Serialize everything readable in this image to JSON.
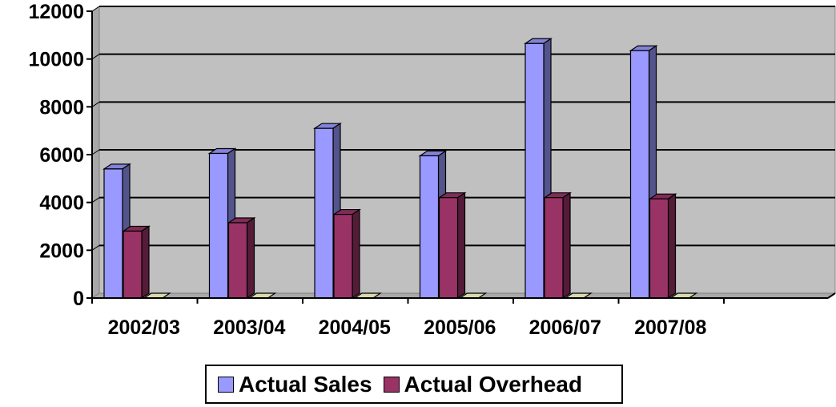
{
  "chart_data": {
    "type": "bar",
    "categories": [
      "2002/03",
      "2003/04",
      "2004/05",
      "2005/06",
      "2006/07",
      "2007/08"
    ],
    "series": [
      {
        "name": "Actual Sales",
        "values": [
          5400,
          6050,
          7100,
          5950,
          10650,
          10350
        ],
        "color": "#9999ff"
      },
      {
        "name": "Actual Overhead",
        "values": [
          2800,
          3150,
          3500,
          4200,
          4200,
          4150
        ],
        "color": "#993366"
      },
      {
        "name": "",
        "values": [
          0,
          0,
          0,
          0,
          0,
          0
        ],
        "color": "#ffffcc"
      }
    ],
    "ylim": [
      0,
      12000
    ],
    "yticks": [
      0,
      2000,
      4000,
      6000,
      8000,
      10000,
      12000
    ],
    "grid": true,
    "plot_background": "#c0c0c0",
    "legend_position": "bottom",
    "title": "",
    "xlabel": "",
    "ylabel": ""
  },
  "legend": {
    "items": [
      {
        "label": "Actual Sales",
        "color": "#9999ff"
      },
      {
        "label": "Actual Overhead",
        "color": "#993366"
      }
    ]
  }
}
